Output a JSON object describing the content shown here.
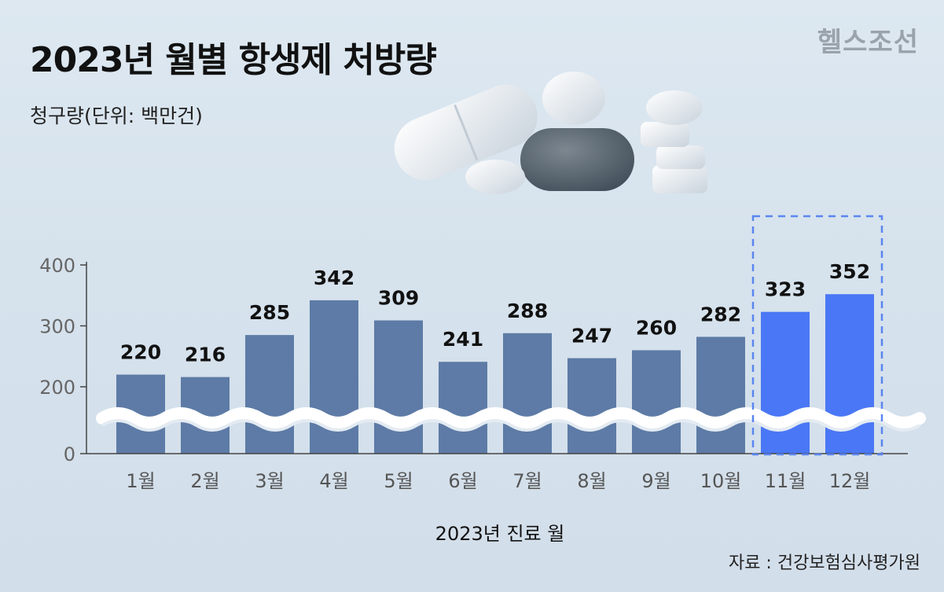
{
  "title": "2023년 월별 항생제 처방량",
  "subtitle": "청구량(단위: 백만건)",
  "logo": "헬스조선",
  "source": "자료 : 건강보험심사평가원",
  "colors": {
    "bar_normal": "#5d7ba6",
    "bar_highlight": "#4a77f5",
    "highlight_border": "#5a86f0"
  },
  "chart_data": {
    "type": "bar",
    "xlabel": "2023년 진료 월",
    "ylabel": "청구량(단위: 백만건)",
    "categories": [
      "1월",
      "2월",
      "3월",
      "4월",
      "5월",
      "6월",
      "7월",
      "8월",
      "9월",
      "10월",
      "11월",
      "12월"
    ],
    "values": [
      220,
      216,
      285,
      342,
      309,
      241,
      288,
      247,
      260,
      282,
      323,
      352
    ],
    "highlighted": [
      "11월",
      "12월"
    ],
    "yticks": [
      0,
      200,
      300,
      400
    ],
    "ylim": [
      0,
      400
    ],
    "axis_break": true,
    "grid": false
  }
}
